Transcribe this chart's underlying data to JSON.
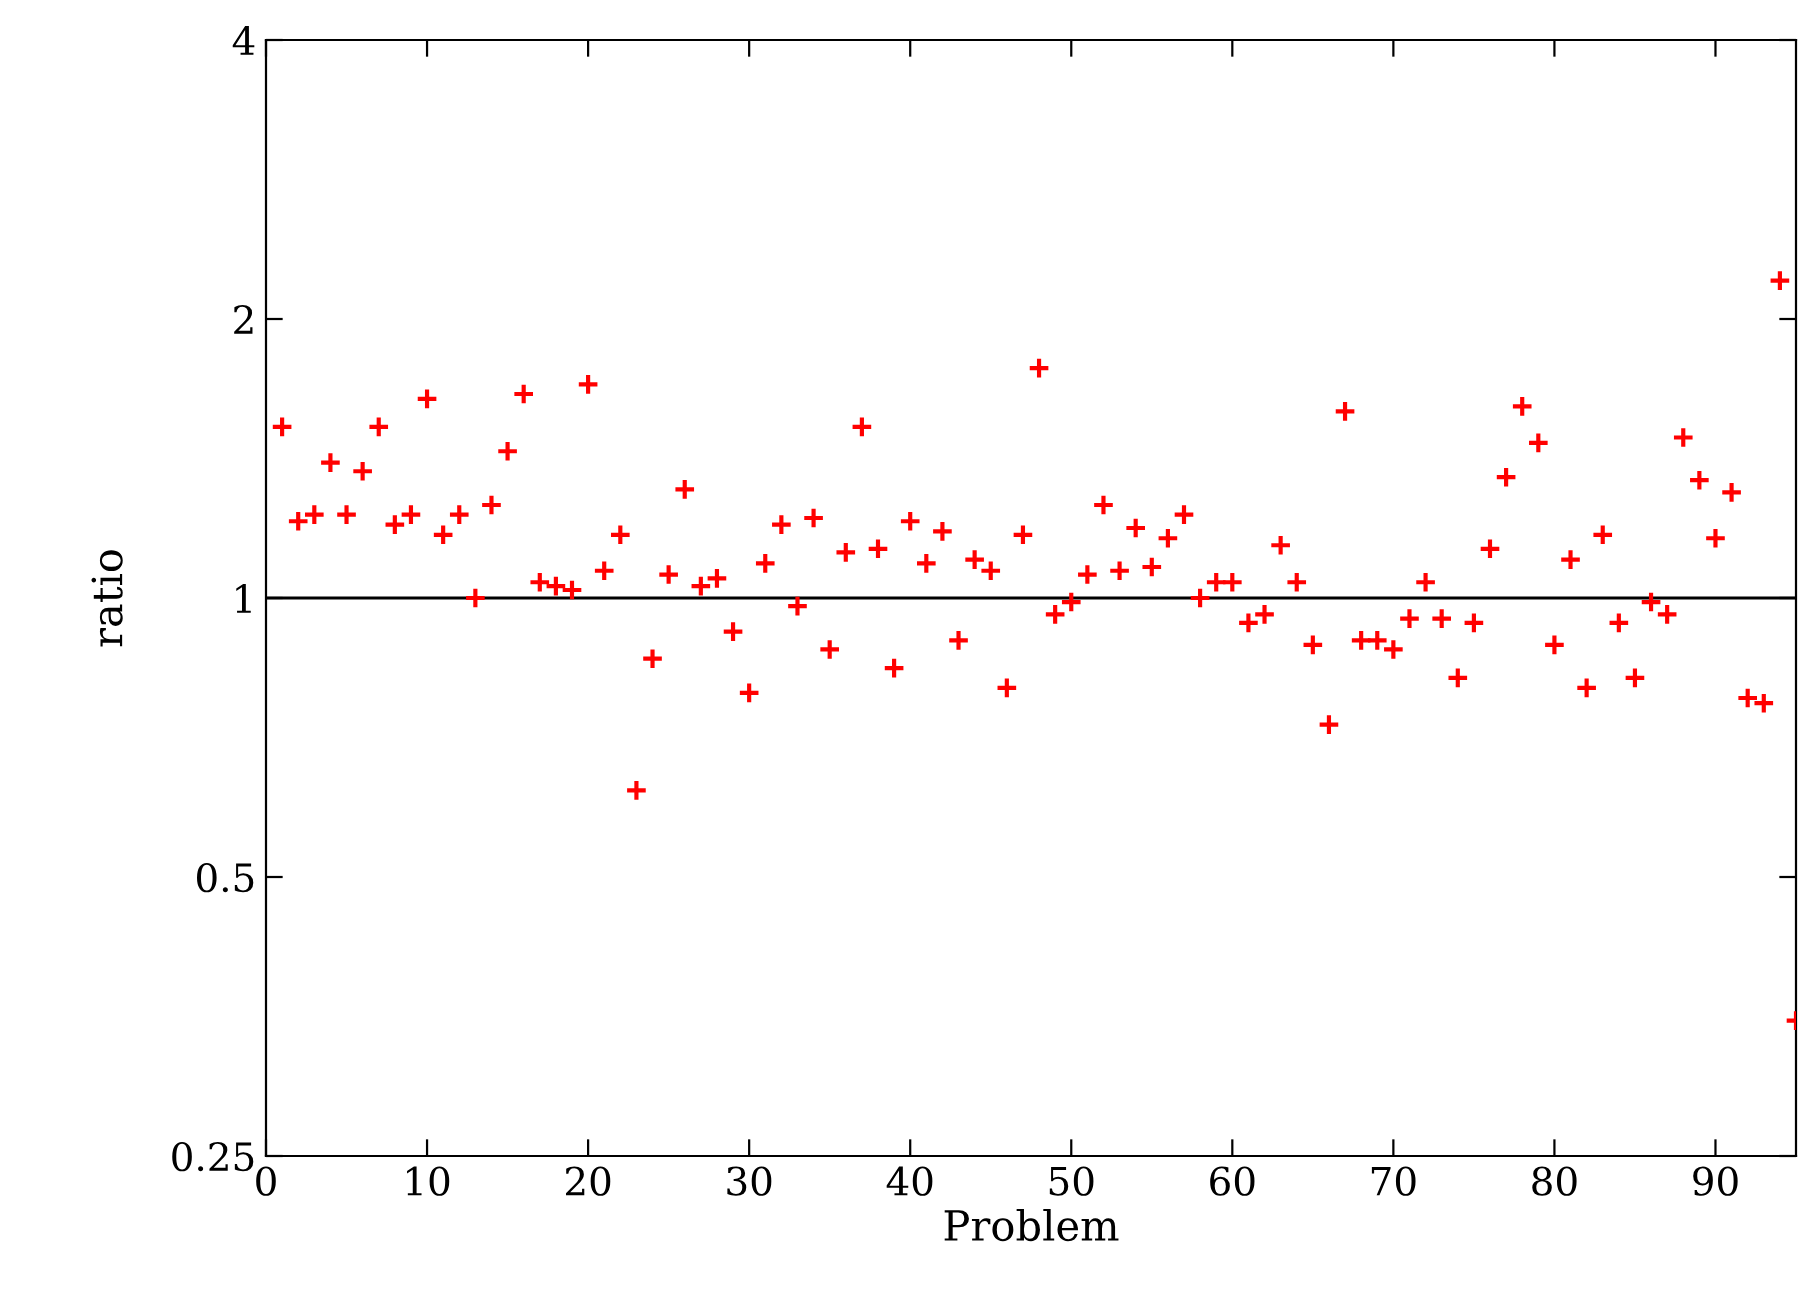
{
  "chart_data": {
    "type": "scatter",
    "xlabel": "Problem",
    "ylabel": "ratio",
    "x": [
      1,
      2,
      3,
      4,
      5,
      6,
      7,
      8,
      9,
      10,
      11,
      12,
      13,
      14,
      15,
      16,
      17,
      18,
      19,
      20,
      21,
      22,
      23,
      24,
      25,
      26,
      27,
      28,
      29,
      30,
      31,
      32,
      33,
      34,
      35,
      36,
      37,
      38,
      39,
      40,
      41,
      42,
      43,
      44,
      45,
      46,
      47,
      48,
      49,
      50,
      51,
      52,
      53,
      54,
      55,
      56,
      57,
      58,
      59,
      60,
      61,
      62,
      63,
      64,
      65,
      66,
      67,
      68,
      69,
      70,
      71,
      72,
      73,
      74,
      75,
      76,
      77,
      78,
      79,
      80,
      81,
      82,
      83,
      84,
      85,
      86,
      87,
      88,
      89,
      90,
      91,
      92,
      93,
      94,
      95
    ],
    "series": [
      {
        "color": "#ff0000",
        "values": [
          1.53,
          1.21,
          1.23,
          1.4,
          1.23,
          1.37,
          1.53,
          1.2,
          1.23,
          1.64,
          1.17,
          1.23,
          1.0,
          1.26,
          1.44,
          1.66,
          1.04,
          1.03,
          1.02,
          1.7,
          1.07,
          1.17,
          0.62,
          0.86,
          1.06,
          1.31,
          1.03,
          1.05,
          0.92,
          0.79,
          1.09,
          1.2,
          0.98,
          1.22,
          0.88,
          1.12,
          1.53,
          1.13,
          0.84,
          1.21,
          1.09,
          1.18,
          0.9,
          1.1,
          1.07,
          0.8,
          1.17,
          1.77,
          0.96,
          0.99,
          1.06,
          1.26,
          1.07,
          1.19,
          1.08,
          1.16,
          1.23,
          1.0,
          1.04,
          1.04,
          0.94,
          0.96,
          1.14,
          1.04,
          0.89,
          0.73,
          1.59,
          0.9,
          0.9,
          0.88,
          0.95,
          1.04,
          0.95,
          0.82,
          0.94,
          1.13,
          1.35,
          1.61,
          1.47,
          0.89,
          1.1,
          0.8,
          1.17,
          0.94,
          0.82,
          0.99,
          0.96,
          1.49,
          1.34,
          1.16,
          1.3,
          0.78,
          0.77,
          2.2,
          0.35
        ]
      }
    ],
    "log": "y",
    "xlim": [
      0,
      95
    ],
    "xticks": [
      0,
      10,
      20,
      30,
      40,
      50,
      60,
      70,
      80,
      90
    ],
    "ylim": [
      0.25,
      4
    ],
    "yticks": [
      0.25,
      0.5,
      1,
      2,
      4
    ],
    "ref_lines": [
      {
        "axis": "y",
        "value": 1,
        "color": "#000000"
      }
    ],
    "marker": "cross",
    "grid": false
  }
}
